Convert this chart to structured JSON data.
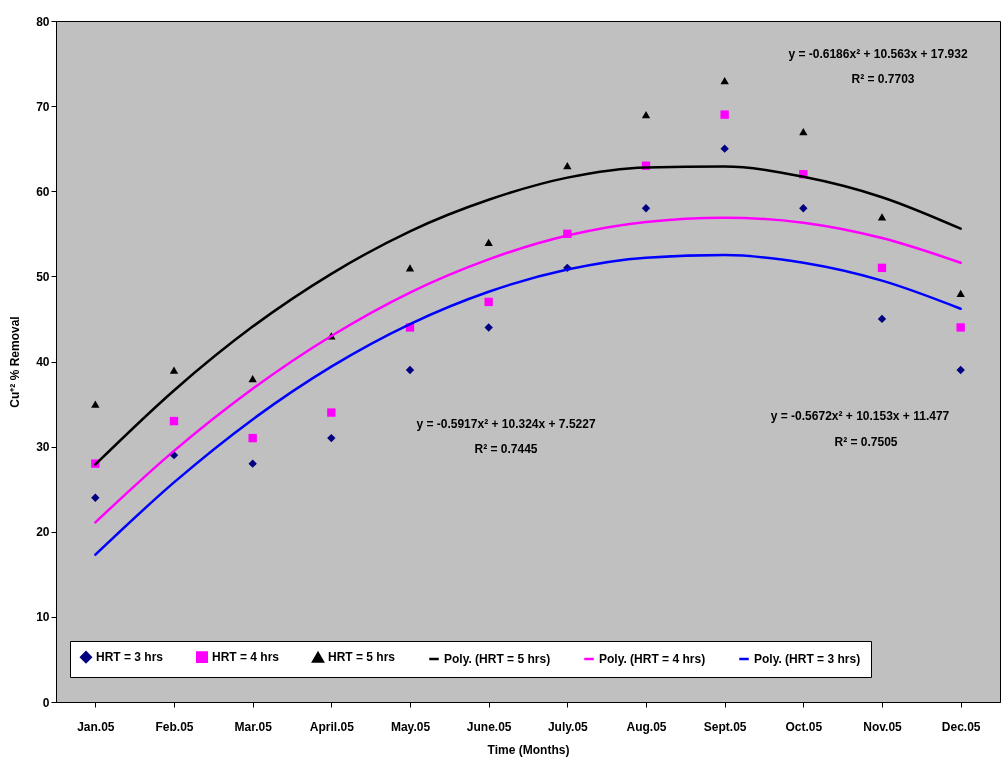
{
  "chart_data": {
    "type": "scatter",
    "xlabel": "Time (Months)",
    "ylabel": "Cu⁺² % Removal",
    "categories": [
      "Jan.05",
      "Feb.05",
      "Mar.05",
      "April.05",
      "May.05",
      "June.05",
      "July.05",
      "Aug.05",
      "Sept.05",
      "Oct.05",
      "Nov.05",
      "Dec.05"
    ],
    "series": [
      {
        "name": "HRT = 3 hrs",
        "type": "scatter",
        "marker": "diamond",
        "color": "#000080",
        "values": [
          24,
          29,
          28,
          31,
          39,
          44,
          51,
          58,
          65,
          58,
          45,
          39
        ]
      },
      {
        "name": "HRT = 4 hrs",
        "type": "scatter",
        "marker": "square",
        "color": "#ff00ff",
        "values": [
          28,
          33,
          31,
          34,
          44,
          47,
          55,
          63,
          69,
          62,
          51,
          44
        ]
      },
      {
        "name": "HRT = 5 hrs",
        "type": "scatter",
        "marker": "triangle",
        "color": "#000000",
        "values": [
          35,
          39,
          38,
          43,
          51,
          54,
          63,
          69,
          73,
          67,
          57,
          48
        ]
      },
      {
        "name": "Poly. (HRT = 5 hrs)",
        "type": "line",
        "marker": "none",
        "color": "#000000",
        "values": [
          27.9,
          36.6,
          44.1,
          50.3,
          55.3,
          59.0,
          61.6,
          62.8,
          62.9,
          61.7,
          59.3,
          55.6
        ]
      },
      {
        "name": "Poly. (HRT = 4 hrs)",
        "type": "line",
        "marker": "none",
        "color": "#ff00ff",
        "values": [
          21.1,
          29.5,
          36.8,
          43.0,
          48.1,
          52.0,
          54.8,
          56.4,
          56.9,
          56.3,
          54.5,
          51.6
        ]
      },
      {
        "name": "Poly. (HRT = 3 hrs)",
        "type": "line",
        "marker": "none",
        "color": "#0000ff",
        "values": [
          17.3,
          25.8,
          33.2,
          39.4,
          44.4,
          48.2,
          50.8,
          52.2,
          52.5,
          51.6,
          49.5,
          46.2
        ]
      }
    ],
    "ylim": [
      0,
      80
    ],
    "yticks": [
      0,
      10,
      20,
      30,
      40,
      50,
      60,
      70,
      80
    ],
    "grid": false,
    "legend": "bottom",
    "annotations": [
      "y = -0.6186x² + 10.563x + 17.932",
      "R² = 0.7703",
      "y = -0.5917x² + 10.324x + 7.5227",
      "R² = 0.7445",
      "y = -0.5672x² + 10.153x + 11.477",
      "R² = 0.7505"
    ]
  }
}
